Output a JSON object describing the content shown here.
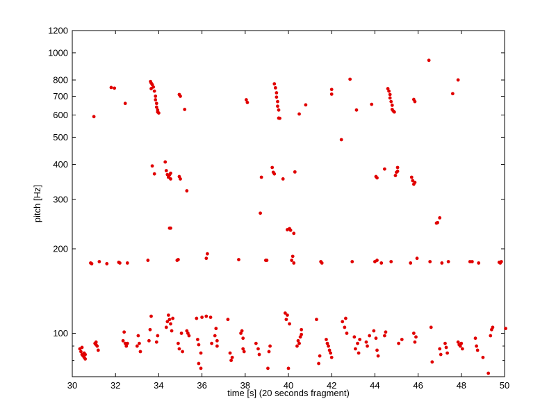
{
  "chart_data": {
    "type": "scatter",
    "title": "",
    "xlabel": "time [s] (20 seconds fragment)",
    "ylabel": "pitch [Hz]",
    "xlim": [
      30,
      50
    ],
    "ylim": [
      70,
      1200
    ],
    "yscale": "log",
    "grid": false,
    "marker_color": "#e00000",
    "xticks": [
      30,
      32,
      34,
      36,
      38,
      40,
      42,
      44,
      46,
      48,
      50
    ],
    "yticks": [
      100,
      200,
      300,
      400,
      500,
      600,
      700,
      800,
      1000,
      1200
    ],
    "yticks_minor": [
      80,
      90
    ],
    "points": [
      [
        30.35,
        88
      ],
      [
        30.4,
        86
      ],
      [
        30.45,
        84
      ],
      [
        30.5,
        83
      ],
      [
        30.55,
        82
      ],
      [
        30.6,
        81
      ],
      [
        30.45,
        89
      ],
      [
        30.55,
        85
      ],
      [
        30.6,
        84
      ],
      [
        30.85,
        178
      ],
      [
        30.9,
        177
      ],
      [
        31.0,
        592
      ],
      [
        31.05,
        92
      ],
      [
        31.1,
        91
      ],
      [
        31.15,
        90
      ],
      [
        31.1,
        93
      ],
      [
        31.2,
        87
      ],
      [
        31.25,
        180
      ],
      [
        31.6,
        177
      ],
      [
        31.8,
        752
      ],
      [
        31.95,
        748
      ],
      [
        32.15,
        179
      ],
      [
        32.2,
        178
      ],
      [
        32.35,
        94
      ],
      [
        32.4,
        101
      ],
      [
        32.45,
        92
      ],
      [
        32.5,
        90
      ],
      [
        32.55,
        92
      ],
      [
        32.55,
        178
      ],
      [
        32.45,
        660
      ],
      [
        33.0,
        90
      ],
      [
        33.05,
        98
      ],
      [
        33.1,
        92
      ],
      [
        33.15,
        86
      ],
      [
        33.5,
        182
      ],
      [
        33.55,
        94
      ],
      [
        33.6,
        103
      ],
      [
        33.65,
        115
      ],
      [
        33.62,
        790
      ],
      [
        33.65,
        780
      ],
      [
        33.7,
        770
      ],
      [
        33.75,
        755
      ],
      [
        33.65,
        745
      ],
      [
        33.8,
        730
      ],
      [
        33.85,
        700
      ],
      [
        33.85,
        680
      ],
      [
        33.9,
        660
      ],
      [
        33.9,
        640
      ],
      [
        33.95,
        625
      ],
      [
        33.95,
        615
      ],
      [
        34.0,
        610
      ],
      [
        33.7,
        395
      ],
      [
        33.8,
        370
      ],
      [
        33.9,
        93
      ],
      [
        33.95,
        98
      ],
      [
        34.3,
        408
      ],
      [
        34.35,
        380
      ],
      [
        34.4,
        368
      ],
      [
        34.45,
        360
      ],
      [
        34.5,
        367
      ],
      [
        34.55,
        355
      ],
      [
        34.55,
        372
      ],
      [
        34.35,
        105
      ],
      [
        34.4,
        110
      ],
      [
        34.45,
        116
      ],
      [
        34.5,
        112
      ],
      [
        34.55,
        108
      ],
      [
        34.6,
        102
      ],
      [
        34.65,
        113
      ],
      [
        34.5,
        237
      ],
      [
        34.55,
        237
      ],
      [
        34.85,
        182
      ],
      [
        34.9,
        183
      ],
      [
        34.95,
        710
      ],
      [
        35.0,
        700
      ],
      [
        34.9,
        92
      ],
      [
        34.95,
        88
      ],
      [
        35.05,
        100
      ],
      [
        35.1,
        86
      ],
      [
        34.95,
        362
      ],
      [
        35.0,
        355
      ],
      [
        35.2,
        628
      ],
      [
        35.3,
        322
      ],
      [
        35.3,
        102
      ],
      [
        35.35,
        100
      ],
      [
        35.4,
        98
      ],
      [
        35.75,
        113
      ],
      [
        35.8,
        95
      ],
      [
        35.85,
        91
      ],
      [
        35.95,
        85
      ],
      [
        35.95,
        75
      ],
      [
        35.85,
        78
      ],
      [
        36.2,
        185
      ],
      [
        36.25,
        192
      ],
      [
        36.0,
        114
      ],
      [
        36.2,
        115
      ],
      [
        36.4,
        114
      ],
      [
        36.45,
        92
      ],
      [
        36.6,
        98
      ],
      [
        36.65,
        104
      ],
      [
        36.7,
        94
      ],
      [
        36.7,
        90
      ],
      [
        37.2,
        112
      ],
      [
        37.3,
        85
      ],
      [
        37.35,
        80
      ],
      [
        37.4,
        82
      ],
      [
        37.7,
        183
      ],
      [
        37.8,
        100
      ],
      [
        37.85,
        102
      ],
      [
        37.9,
        96
      ],
      [
        37.9,
        88
      ],
      [
        37.95,
        86
      ],
      [
        38.05,
        680
      ],
      [
        38.1,
        665
      ],
      [
        38.5,
        92
      ],
      [
        38.6,
        88
      ],
      [
        38.65,
        84
      ],
      [
        38.7,
        268
      ],
      [
        38.75,
        360
      ],
      [
        38.95,
        182
      ],
      [
        39.0,
        182
      ],
      [
        39.1,
        86
      ],
      [
        39.15,
        90
      ],
      [
        39.05,
        75
      ],
      [
        39.25,
        390
      ],
      [
        39.3,
        375
      ],
      [
        39.35,
        370
      ],
      [
        39.35,
        775
      ],
      [
        39.4,
        750
      ],
      [
        39.45,
        720
      ],
      [
        39.45,
        695
      ],
      [
        39.5,
        670
      ],
      [
        39.5,
        645
      ],
      [
        39.55,
        625
      ],
      [
        39.55,
        585
      ],
      [
        39.6,
        584
      ],
      [
        39.75,
        355
      ],
      [
        39.85,
        118
      ],
      [
        39.9,
        112
      ],
      [
        39.95,
        116
      ],
      [
        40.05,
        108
      ],
      [
        39.95,
        234
      ],
      [
        40.05,
        236
      ],
      [
        40.1,
        233
      ],
      [
        40.25,
        227
      ],
      [
        40.15,
        182
      ],
      [
        40.2,
        188
      ],
      [
        40.25,
        178
      ],
      [
        40.3,
        376
      ],
      [
        40.0,
        75
      ],
      [
        40.4,
        90
      ],
      [
        40.45,
        94
      ],
      [
        40.5,
        92
      ],
      [
        40.55,
        97
      ],
      [
        40.6,
        99
      ],
      [
        40.6,
        103
      ],
      [
        40.5,
        605
      ],
      [
        40.8,
        652
      ],
      [
        41.3,
        112
      ],
      [
        41.4,
        78
      ],
      [
        41.45,
        83
      ],
      [
        41.5,
        180
      ],
      [
        41.55,
        178
      ],
      [
        41.75,
        95
      ],
      [
        41.8,
        92
      ],
      [
        41.85,
        90
      ],
      [
        41.9,
        87
      ],
      [
        41.95,
        85
      ],
      [
        42.0,
        82
      ],
      [
        42.0,
        740
      ],
      [
        42.0,
        712
      ],
      [
        42.45,
        490
      ],
      [
        42.5,
        110
      ],
      [
        42.6,
        105
      ],
      [
        42.65,
        113
      ],
      [
        42.7,
        100
      ],
      [
        42.85,
        805
      ],
      [
        42.95,
        180
      ],
      [
        43.05,
        97
      ],
      [
        43.1,
        88
      ],
      [
        43.15,
        625
      ],
      [
        43.2,
        92
      ],
      [
        43.25,
        85
      ],
      [
        43.3,
        95
      ],
      [
        43.6,
        93
      ],
      [
        43.65,
        90
      ],
      [
        43.75,
        98
      ],
      [
        43.85,
        655
      ],
      [
        44.0,
        180
      ],
      [
        44.1,
        182
      ],
      [
        44.05,
        362
      ],
      [
        44.1,
        358
      ],
      [
        44.3,
        178
      ],
      [
        43.95,
        102
      ],
      [
        44.05,
        96
      ],
      [
        44.1,
        87
      ],
      [
        44.15,
        83
      ],
      [
        44.45,
        98
      ],
      [
        44.5,
        101
      ],
      [
        44.45,
        385
      ],
      [
        44.6,
        745
      ],
      [
        44.65,
        730
      ],
      [
        44.7,
        710
      ],
      [
        44.7,
        690
      ],
      [
        44.75,
        670
      ],
      [
        44.8,
        650
      ],
      [
        44.8,
        628
      ],
      [
        44.85,
        620
      ],
      [
        44.9,
        615
      ],
      [
        44.75,
        180
      ],
      [
        44.95,
        365
      ],
      [
        45.0,
        375
      ],
      [
        45.05,
        390
      ],
      [
        45.05,
        378
      ],
      [
        45.1,
        92
      ],
      [
        45.25,
        95
      ],
      [
        45.65,
        178
      ],
      [
        45.7,
        360
      ],
      [
        45.75,
        350
      ],
      [
        45.8,
        340
      ],
      [
        45.85,
        345
      ],
      [
        45.8,
        682
      ],
      [
        45.85,
        670
      ],
      [
        45.8,
        100
      ],
      [
        45.85,
        93
      ],
      [
        45.9,
        97
      ],
      [
        45.95,
        185
      ],
      [
        46.5,
        940
      ],
      [
        46.55,
        180
      ],
      [
        46.6,
        105
      ],
      [
        46.65,
        79
      ],
      [
        46.85,
        247
      ],
      [
        46.9,
        248
      ],
      [
        47.0,
        258
      ],
      [
        47.0,
        88
      ],
      [
        47.05,
        84
      ],
      [
        47.1,
        178
      ],
      [
        47.25,
        92
      ],
      [
        47.3,
        89
      ],
      [
        47.35,
        85
      ],
      [
        47.4,
        180
      ],
      [
        47.6,
        715
      ],
      [
        47.85,
        800
      ],
      [
        47.85,
        93
      ],
      [
        47.9,
        91
      ],
      [
        47.95,
        90
      ],
      [
        48.0,
        92
      ],
      [
        48.05,
        88
      ],
      [
        48.4,
        180
      ],
      [
        48.5,
        180
      ],
      [
        48.65,
        96
      ],
      [
        48.7,
        90
      ],
      [
        48.75,
        87
      ],
      [
        48.8,
        178
      ],
      [
        49.0,
        82
      ],
      [
        49.25,
        72
      ],
      [
        49.35,
        98
      ],
      [
        49.4,
        103
      ],
      [
        49.45,
        105
      ],
      [
        49.75,
        179
      ],
      [
        49.8,
        178
      ],
      [
        49.85,
        180
      ],
      [
        50.05,
        104
      ]
    ]
  }
}
